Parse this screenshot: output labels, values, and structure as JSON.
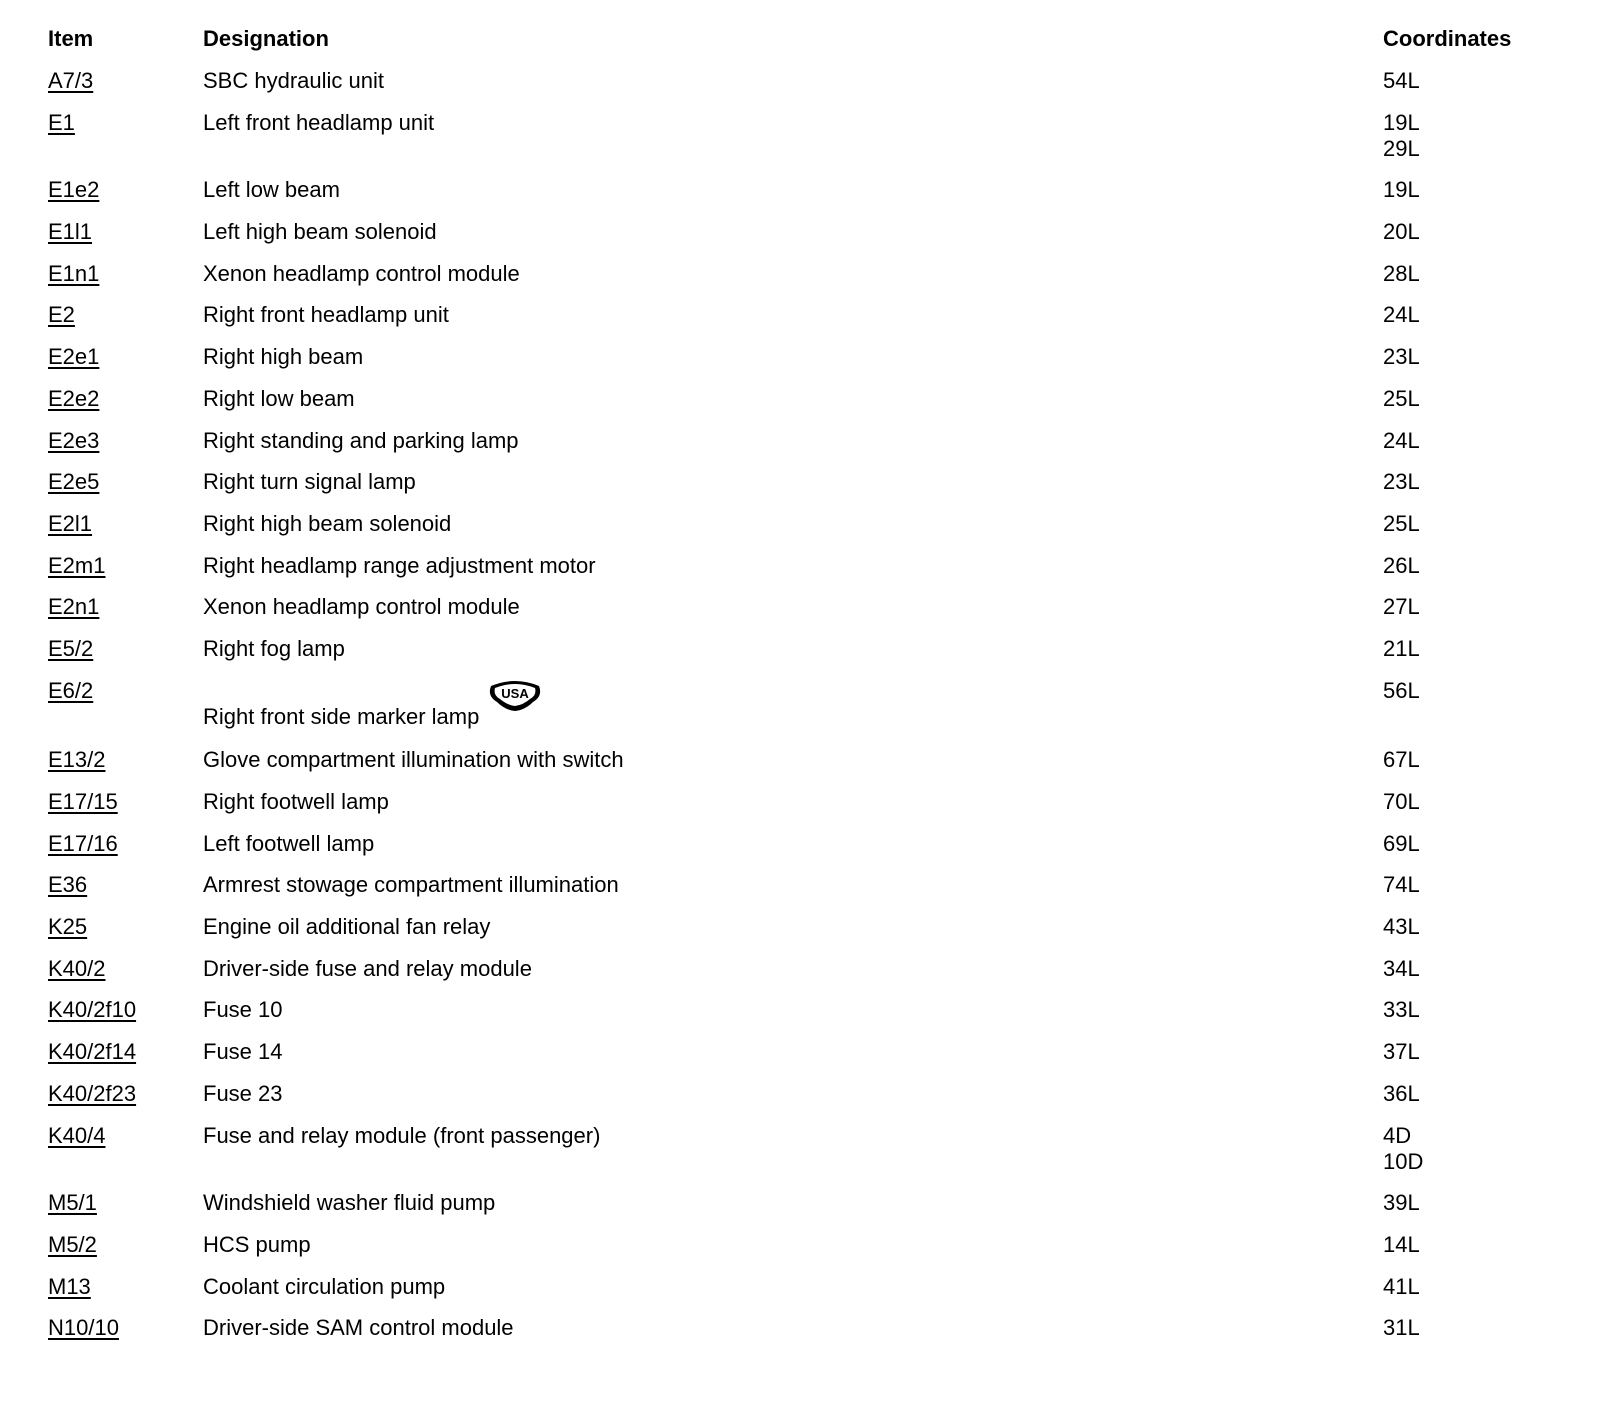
{
  "headers": {
    "item": "Item",
    "designation": "Designation",
    "coordinates": "Coordinates"
  },
  "rows": [
    {
      "item": "A7/3",
      "designation": "SBC hydraulic unit",
      "coordinates": [
        "54L"
      ]
    },
    {
      "item": "E1",
      "designation": "Left front headlamp unit",
      "coordinates": [
        "19L",
        "29L"
      ]
    },
    {
      "item": "E1e2",
      "designation": "Left low beam",
      "coordinates": [
        "19L"
      ]
    },
    {
      "item": "E1l1",
      "designation": "Left high beam solenoid",
      "coordinates": [
        "20L"
      ]
    },
    {
      "item": "E1n1",
      "designation": "Xenon headlamp control module",
      "coordinates": [
        "28L"
      ]
    },
    {
      "item": "E2",
      "designation": "Right front headlamp unit",
      "coordinates": [
        "24L"
      ]
    },
    {
      "item": "E2e1",
      "designation": "Right high beam",
      "coordinates": [
        "23L"
      ]
    },
    {
      "item": "E2e2",
      "designation": "Right low beam",
      "coordinates": [
        "25L"
      ]
    },
    {
      "item": "E2e3",
      "designation": "Right standing and parking lamp",
      "coordinates": [
        "24L"
      ]
    },
    {
      "item": "E2e5",
      "designation": "Right turn signal lamp",
      "coordinates": [
        "23L"
      ]
    },
    {
      "item": "E2l1",
      "designation": "Right high beam solenoid",
      "coordinates": [
        "25L"
      ]
    },
    {
      "item": "E2m1",
      "designation": "Right headlamp range adjustment motor",
      "coordinates": [
        "26L"
      ]
    },
    {
      "item": "E2n1",
      "designation": "Xenon headlamp control module",
      "coordinates": [
        "27L"
      ]
    },
    {
      "item": "E5/2",
      "designation": "Right fog lamp",
      "coordinates": [
        "21L"
      ]
    },
    {
      "item": "E6/2",
      "designation": "Right front side marker lamp",
      "coordinates": [
        "56L"
      ],
      "badge": "USA"
    },
    {
      "item": "E13/2",
      "designation": "Glove compartment illumination with switch",
      "coordinates": [
        "67L"
      ]
    },
    {
      "item": "E17/15",
      "designation": "Right footwell lamp",
      "coordinates": [
        "70L"
      ]
    },
    {
      "item": "E17/16",
      "designation": "Left footwell lamp",
      "coordinates": [
        "69L"
      ]
    },
    {
      "item": "E36",
      "designation": "Armrest stowage compartment illumination",
      "coordinates": [
        "74L"
      ]
    },
    {
      "item": "K25",
      "designation": "Engine oil additional fan relay",
      "coordinates": [
        "43L"
      ]
    },
    {
      "item": "K40/2",
      "designation": "Driver-side fuse and relay module",
      "coordinates": [
        "34L"
      ]
    },
    {
      "item": "K40/2f10",
      "designation": "Fuse 10",
      "coordinates": [
        "33L"
      ]
    },
    {
      "item": "K40/2f14",
      "designation": "Fuse 14",
      "coordinates": [
        "37L"
      ]
    },
    {
      "item": "K40/2f23",
      "designation": "Fuse 23",
      "coordinates": [
        "36L"
      ]
    },
    {
      "item": "K40/4",
      "designation": "Fuse and relay module (front passenger)",
      "coordinates": [
        "4D",
        "10D"
      ]
    },
    {
      "item": "M5/1",
      "designation": "Windshield washer fluid pump",
      "coordinates": [
        "39L"
      ]
    },
    {
      "item": "M5/2",
      "designation": "HCS pump",
      "coordinates": [
        "14L"
      ]
    },
    {
      "item": "M13",
      "designation": "Coolant circulation pump",
      "coordinates": [
        "41L"
      ]
    },
    {
      "item": "N10/10",
      "designation": "Driver-side SAM control module",
      "coordinates": [
        "31L"
      ]
    }
  ]
}
